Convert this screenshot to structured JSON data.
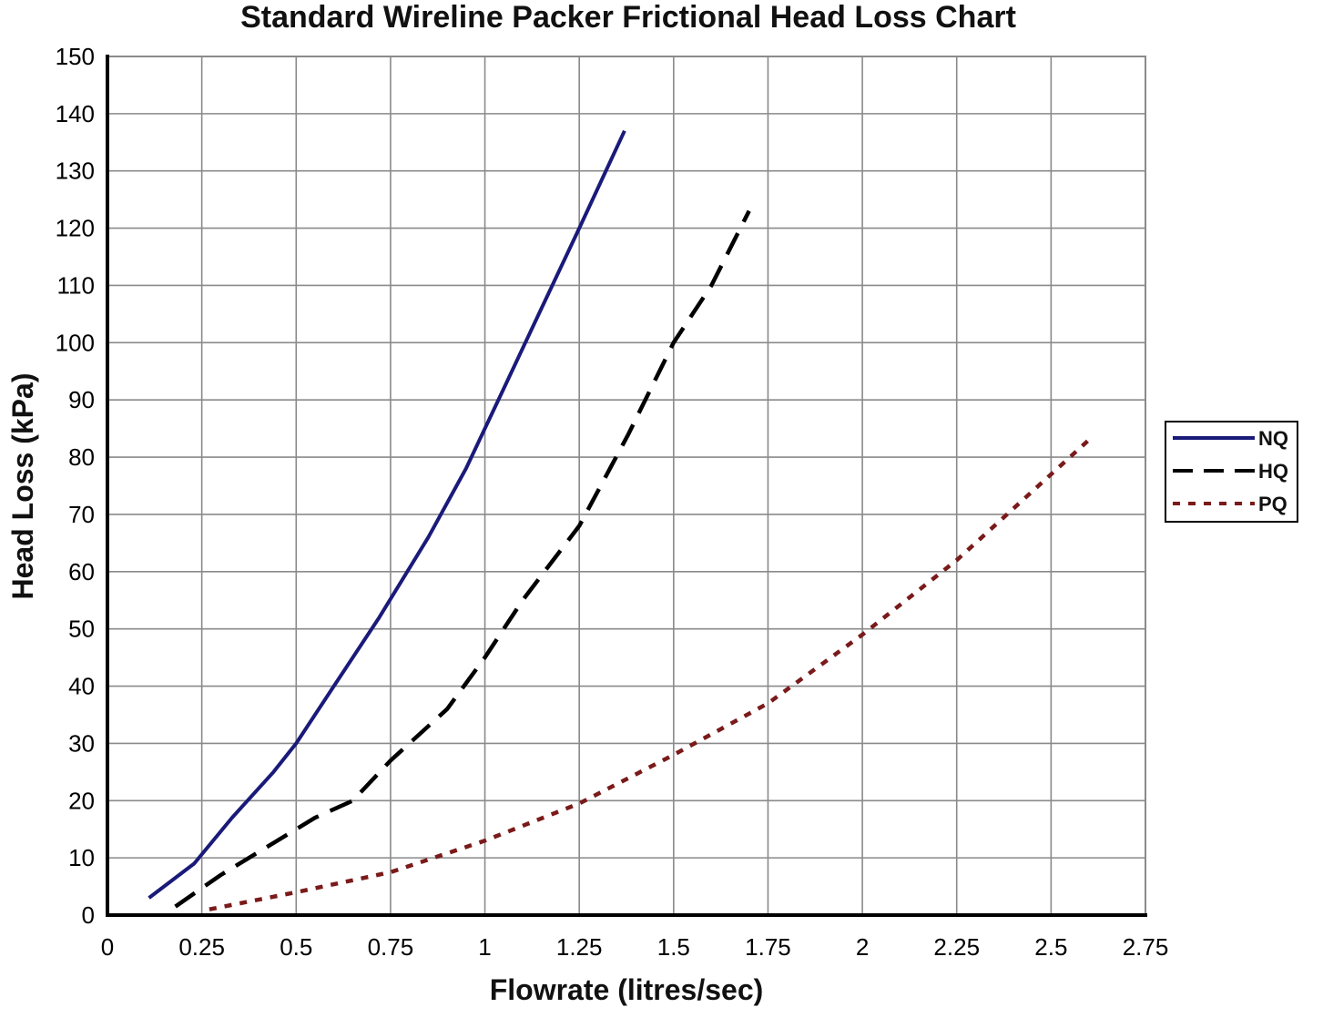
{
  "chart_data": {
    "type": "line",
    "title": "Standard Wireline Packer Frictional Head Loss Chart",
    "xlabel": "Flowrate (litres/sec)",
    "ylabel": "Head Loss (kPa)",
    "xlim": [
      0,
      2.75
    ],
    "ylim": [
      0,
      150
    ],
    "x_ticks": [
      "0",
      "0.25",
      "0.5",
      "0.75",
      "1",
      "1.25",
      "1.5",
      "1.75",
      "2",
      "2.25",
      "2.5",
      "2.75"
    ],
    "y_ticks": [
      "0",
      "10",
      "20",
      "30",
      "40",
      "50",
      "60",
      "70",
      "80",
      "90",
      "100",
      "110",
      "120",
      "130",
      "140",
      "150"
    ],
    "grid": true,
    "legend_position": "right",
    "series": [
      {
        "name": "NQ",
        "color": "#1a1a7a",
        "style": "solid",
        "points": [
          [
            0.11,
            3
          ],
          [
            0.23,
            9
          ],
          [
            0.33,
            17
          ],
          [
            0.44,
            25
          ],
          [
            0.5,
            30
          ],
          [
            0.6,
            40
          ],
          [
            0.72,
            52
          ],
          [
            0.85,
            66
          ],
          [
            0.95,
            78
          ],
          [
            1.05,
            92
          ],
          [
            1.15,
            106
          ],
          [
            1.25,
            120
          ],
          [
            1.37,
            137
          ]
        ]
      },
      {
        "name": "HQ",
        "color": "#000000",
        "style": "dashed",
        "points": [
          [
            0.18,
            1.5
          ],
          [
            0.3,
            7
          ],
          [
            0.45,
            13
          ],
          [
            0.55,
            17
          ],
          [
            0.65,
            20
          ],
          [
            0.75,
            27
          ],
          [
            0.9,
            36
          ],
          [
            1.0,
            45
          ],
          [
            1.1,
            55
          ],
          [
            1.25,
            68
          ],
          [
            1.38,
            84
          ],
          [
            1.5,
            100
          ],
          [
            1.6,
            110
          ],
          [
            1.7,
            123
          ]
        ]
      },
      {
        "name": "PQ",
        "color": "#7a1a1a",
        "style": "dotted",
        "points": [
          [
            0.27,
            1
          ],
          [
            0.5,
            4
          ],
          [
            0.75,
            7.5
          ],
          [
            1.0,
            13
          ],
          [
            1.25,
            19.5
          ],
          [
            1.5,
            28
          ],
          [
            1.75,
            37
          ],
          [
            2.0,
            49
          ],
          [
            2.25,
            62
          ],
          [
            2.45,
            74
          ],
          [
            2.6,
            83
          ]
        ]
      }
    ]
  }
}
